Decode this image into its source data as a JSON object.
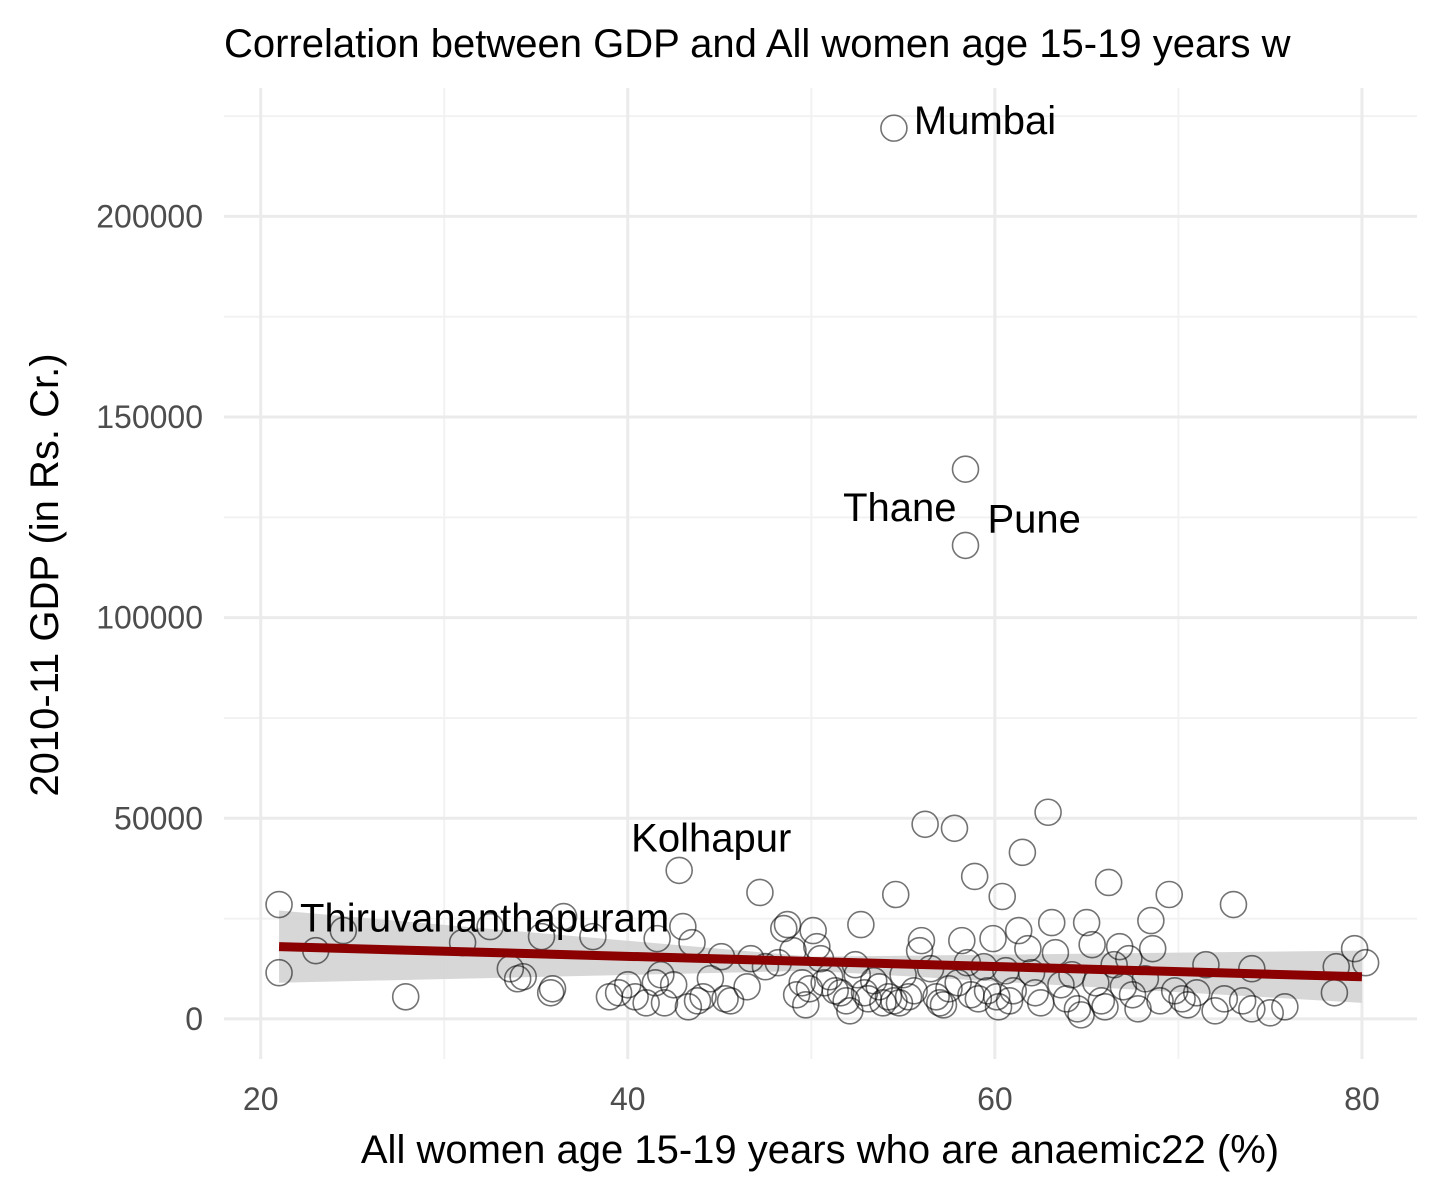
{
  "chart_data": {
    "type": "scatter",
    "title": "Correlation between GDP and All women age 15-19 years w",
    "xlabel": "All women age 15-19 years who are anaemic22 (%)",
    "ylabel": "2010-11 GDP (in Rs. Cr.)",
    "xlim": [
      18,
      83
    ],
    "ylim": [
      -10000,
      232000
    ],
    "x_ticks": [
      20,
      40,
      60,
      80
    ],
    "y_ticks": [
      0,
      50000,
      100000,
      150000,
      200000
    ],
    "x_tick_labels": [
      "20",
      "40",
      "60",
      "80"
    ],
    "y_tick_labels": [
      "0",
      "50000",
      "100000",
      "150000",
      "200000"
    ],
    "grid": true,
    "colors": {
      "trend_line": "#8b0000",
      "confidence_band": "#d3d3d3",
      "points": "#000000"
    },
    "trend_line": {
      "x": [
        21,
        80
      ],
      "y": [
        18000,
        10500
      ]
    },
    "confidence_band": {
      "x": [
        21,
        50,
        80
      ],
      "lower": [
        9000,
        12000,
        4000
      ],
      "upper": [
        27000,
        15500,
        17000
      ]
    },
    "labeled_points": [
      {
        "name": "Mumbai",
        "x": 54.5,
        "y": 222000
      },
      {
        "name": "Thane",
        "x": 58.4,
        "y": 137000
      },
      {
        "name": "Pune",
        "x": 58.4,
        "y": 118000
      },
      {
        "name": "Kolhapur",
        "x": 42.8,
        "y": 37000
      },
      {
        "name": "Thiruvananthapuram",
        "x": 21.0,
        "y": 28500
      }
    ],
    "points": [
      [
        54.5,
        222000
      ],
      [
        58.4,
        137000
      ],
      [
        58.4,
        118000
      ],
      [
        42.8,
        37000
      ],
      [
        21.0,
        28500
      ],
      [
        21.0,
        11500
      ],
      [
        23.0,
        17000
      ],
      [
        24.5,
        22000
      ],
      [
        27.9,
        5500
      ],
      [
        31.0,
        19000
      ],
      [
        32.5,
        23000
      ],
      [
        33.6,
        12500
      ],
      [
        34.0,
        10000
      ],
      [
        34.3,
        10500
      ],
      [
        35.3,
        20500
      ],
      [
        35.8,
        6500
      ],
      [
        35.9,
        7500
      ],
      [
        36.5,
        25500
      ],
      [
        38.1,
        20500
      ],
      [
        39.0,
        5500
      ],
      [
        39.5,
        6500
      ],
      [
        40.0,
        8500
      ],
      [
        40.4,
        5500
      ],
      [
        41.0,
        4000
      ],
      [
        41.5,
        9000
      ],
      [
        41.8,
        11000
      ],
      [
        42.0,
        4000
      ],
      [
        41.6,
        20000
      ],
      [
        42.5,
        8500
      ],
      [
        43.0,
        23000
      ],
      [
        43.3,
        3000
      ],
      [
        43.5,
        19000
      ],
      [
        43.8,
        4500
      ],
      [
        44.1,
        5500
      ],
      [
        44.5,
        10000
      ],
      [
        45.1,
        15500
      ],
      [
        45.3,
        5000
      ],
      [
        45.6,
        4500
      ],
      [
        46.5,
        8000
      ],
      [
        46.7,
        15000
      ],
      [
        47.2,
        31500
      ],
      [
        47.5,
        13000
      ],
      [
        48.2,
        14000
      ],
      [
        48.5,
        22500
      ],
      [
        48.7,
        23500
      ],
      [
        49.0,
        17000
      ],
      [
        49.2,
        6000
      ],
      [
        49.5,
        9000
      ],
      [
        49.7,
        3500
      ],
      [
        49.9,
        7500
      ],
      [
        50.1,
        22000
      ],
      [
        50.3,
        18000
      ],
      [
        50.5,
        15000
      ],
      [
        50.7,
        9000
      ],
      [
        51.0,
        10500
      ],
      [
        51.3,
        7000
      ],
      [
        51.6,
        6500
      ],
      [
        51.9,
        4500
      ],
      [
        52.1,
        2000
      ],
      [
        52.4,
        13500
      ],
      [
        52.5,
        11000
      ],
      [
        52.7,
        23500
      ],
      [
        52.9,
        6500
      ],
      [
        53.1,
        5000
      ],
      [
        53.4,
        9500
      ],
      [
        53.7,
        8000
      ],
      [
        53.9,
        4000
      ],
      [
        54.2,
        5500
      ],
      [
        54.5,
        4500
      ],
      [
        54.6,
        31000
      ],
      [
        54.8,
        4000
      ],
      [
        55.0,
        11000
      ],
      [
        55.3,
        5500
      ],
      [
        55.6,
        7000
      ],
      [
        55.9,
        17000
      ],
      [
        56.0,
        19500
      ],
      [
        56.2,
        48500
      ],
      [
        56.5,
        12500
      ],
      [
        56.8,
        5500
      ],
      [
        57.0,
        4000
      ],
      [
        57.2,
        3500
      ],
      [
        57.5,
        7500
      ],
      [
        57.8,
        47500
      ],
      [
        58.0,
        9000
      ],
      [
        58.2,
        19500
      ],
      [
        58.5,
        14000
      ],
      [
        58.7,
        6000
      ],
      [
        58.9,
        35500
      ],
      [
        59.1,
        5000
      ],
      [
        59.4,
        13000
      ],
      [
        59.6,
        7000
      ],
      [
        59.9,
        20000
      ],
      [
        60.1,
        5500
      ],
      [
        60.2,
        3000
      ],
      [
        60.4,
        30500
      ],
      [
        60.6,
        12000
      ],
      [
        60.8,
        4500
      ],
      [
        61.0,
        7000
      ],
      [
        61.3,
        22000
      ],
      [
        61.5,
        41500
      ],
      [
        61.8,
        17500
      ],
      [
        62.0,
        11500
      ],
      [
        62.2,
        6500
      ],
      [
        62.5,
        4000
      ],
      [
        62.9,
        51500
      ],
      [
        63.1,
        24000
      ],
      [
        63.3,
        16500
      ],
      [
        63.6,
        8500
      ],
      [
        63.9,
        5000
      ],
      [
        64.2,
        11000
      ],
      [
        64.5,
        2500
      ],
      [
        64.7,
        1000
      ],
      [
        65.0,
        24000
      ],
      [
        65.3,
        18500
      ],
      [
        65.5,
        9000
      ],
      [
        65.8,
        4500
      ],
      [
        66.0,
        3000
      ],
      [
        66.2,
        34000
      ],
      [
        66.5,
        13500
      ],
      [
        66.8,
        18000
      ],
      [
        67.0,
        8000
      ],
      [
        67.3,
        15000
      ],
      [
        67.5,
        6000
      ],
      [
        67.8,
        2500
      ],
      [
        68.2,
        10000
      ],
      [
        68.5,
        24500
      ],
      [
        68.6,
        17500
      ],
      [
        69.0,
        4500
      ],
      [
        69.5,
        31000
      ],
      [
        69.8,
        7000
      ],
      [
        70.2,
        5000
      ],
      [
        70.5,
        3500
      ],
      [
        71.0,
        6500
      ],
      [
        71.5,
        13500
      ],
      [
        72.0,
        2000
      ],
      [
        72.5,
        5000
      ],
      [
        73.0,
        28500
      ],
      [
        73.5,
        4500
      ],
      [
        74.0,
        12500
      ],
      [
        74.0,
        2500
      ],
      [
        75.0,
        1500
      ],
      [
        75.8,
        3000
      ],
      [
        78.5,
        6500
      ],
      [
        78.6,
        13000
      ],
      [
        79.6,
        17500
      ],
      [
        80.2,
        14000
      ]
    ]
  }
}
